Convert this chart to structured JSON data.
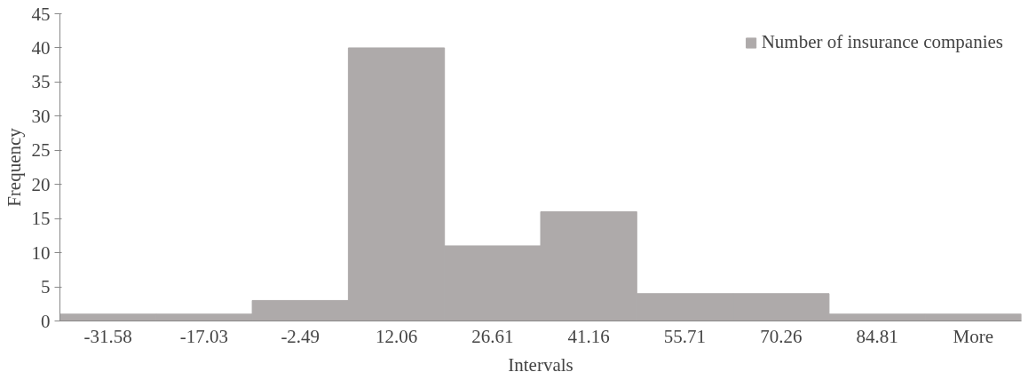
{
  "chart_data": {
    "type": "bar",
    "xlabel": "Intervals",
    "ylabel": "Frequency",
    "categories": [
      "-31.58",
      "-17.03",
      "-2.49",
      "12.06",
      "26.61",
      "41.16",
      "55.71",
      "70.26",
      "84.81",
      "More"
    ],
    "series": [
      {
        "name": "Number of insurance companies",
        "color": "#aeaaaa",
        "values": [
          1,
          1,
          3,
          40,
          11,
          16,
          4,
          4,
          1,
          1
        ]
      }
    ],
    "ylim": [
      0,
      45
    ],
    "yticks": [
      0,
      5,
      10,
      15,
      20,
      25,
      30,
      35,
      40,
      45
    ],
    "grid": false,
    "legend": "top right"
  }
}
